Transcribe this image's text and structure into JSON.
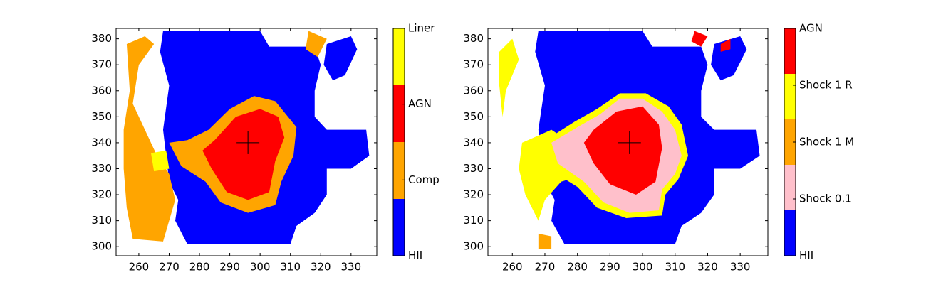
{
  "chart_data": [
    {
      "type": "classmap",
      "xlim": [
        252.5,
        338.5
      ],
      "ylim": [
        296.5,
        384
      ],
      "xticks": [
        260,
        270,
        280,
        290,
        300,
        310,
        320,
        330
      ],
      "yticks": [
        300,
        310,
        320,
        330,
        340,
        350,
        360,
        370,
        380
      ],
      "marker": [
        296,
        340
      ],
      "colorbar": {
        "colors": [
          "#0000ff",
          "#ffa500",
          "#ff0000",
          "#ffff00"
        ],
        "lim": [
          0,
          3
        ],
        "ticks": [
          {
            "value": 0,
            "label": "HII"
          },
          {
            "value": 1,
            "label": "Comp"
          },
          {
            "value": 2,
            "label": "AGN"
          },
          {
            "value": 3,
            "label": "Liner"
          }
        ]
      },
      "regions": [
        {
          "class": 0,
          "points": [
            [
              268,
              383
            ],
            [
              300,
              383
            ],
            [
              303,
              377
            ],
            [
              318,
              377
            ],
            [
              320,
              370
            ],
            [
              318,
              360
            ],
            [
              318,
              350
            ],
            [
              322,
              345
            ],
            [
              335,
              345
            ],
            [
              336,
              335
            ],
            [
              330,
              330
            ],
            [
              322,
              330
            ],
            [
              322,
              320
            ],
            [
              318,
              313
            ],
            [
              312,
              308
            ],
            [
              310,
              301
            ],
            [
              276,
              301
            ],
            [
              272,
              310
            ],
            [
              273,
              318
            ],
            [
              270,
              325
            ],
            [
              268,
              345
            ],
            [
              270,
              362
            ],
            [
              267,
              375
            ]
          ]
        },
        {
          "class": 0,
          "points": [
            [
              322,
              378
            ],
            [
              330,
              381
            ],
            [
              332,
              376
            ],
            [
              328,
              366
            ],
            [
              324,
              364
            ],
            [
              321,
              370
            ]
          ]
        },
        {
          "class": 1,
          "points": [
            [
              256,
              378
            ],
            [
              262,
              381
            ],
            [
              265,
              378
            ],
            [
              260,
              370
            ],
            [
              258,
              355
            ],
            [
              262,
              345
            ],
            [
              266,
              335
            ],
            [
              270,
              328
            ],
            [
              272,
              318
            ],
            [
              270,
              310
            ],
            [
              268,
              302
            ],
            [
              258,
              303
            ],
            [
              256,
              315
            ],
            [
              255,
              330
            ],
            [
              255,
              345
            ],
            [
              257,
              360
            ]
          ]
        },
        {
          "class": 1,
          "points": [
            [
              316,
              383
            ],
            [
              322,
              380
            ],
            [
              319,
              373
            ],
            [
              315,
              376
            ]
          ]
        },
        {
          "class": 1,
          "points": [
            [
              270,
              340
            ],
            [
              276,
              341
            ],
            [
              283,
              345
            ],
            [
              290,
              353
            ],
            [
              298,
              358
            ],
            [
              305,
              356
            ],
            [
              312,
              346
            ],
            [
              311,
              335
            ],
            [
              307,
              325
            ],
            [
              305,
              316
            ],
            [
              296,
              313
            ],
            [
              287,
              317
            ],
            [
              282,
              325
            ],
            [
              274,
              331
            ]
          ]
        },
        {
          "class": 3,
          "points": [
            [
              264,
              336
            ],
            [
              269,
              337
            ],
            [
              270,
              330
            ],
            [
              265,
              329
            ]
          ]
        },
        {
          "class": 2,
          "points": [
            [
              285,
              341
            ],
            [
              292,
              350
            ],
            [
              300,
              353
            ],
            [
              306,
              350
            ],
            [
              308,
              342
            ],
            [
              305,
              333
            ],
            [
              303,
              321
            ],
            [
              296,
              318
            ],
            [
              289,
              321
            ],
            [
              284,
              330
            ],
            [
              281,
              337
            ]
          ]
        }
      ]
    },
    {
      "type": "classmap",
      "xlim": [
        252.5,
        338.5
      ],
      "ylim": [
        296.5,
        384
      ],
      "xticks": [
        260,
        270,
        280,
        290,
        300,
        310,
        320,
        330
      ],
      "yticks": [
        300,
        310,
        320,
        330,
        340,
        350,
        360,
        370,
        380
      ],
      "marker": [
        296,
        340
      ],
      "colorbar": {
        "colors": [
          "#0000ff",
          "#ffc0cb",
          "#ffa500",
          "#ffff00",
          "#ff0000"
        ],
        "lim": [
          0,
          4
        ],
        "ticks": [
          {
            "value": 0,
            "label": "HII"
          },
          {
            "value": 1,
            "label": "Shock 0.1"
          },
          {
            "value": 2,
            "label": "Shock 1 M"
          },
          {
            "value": 3,
            "label": "Shock 1 R"
          },
          {
            "value": 4,
            "label": "AGN"
          }
        ]
      },
      "regions": [
        {
          "class": 0,
          "points": [
            [
              268,
              383
            ],
            [
              300,
              383
            ],
            [
              303,
              377
            ],
            [
              318,
              377
            ],
            [
              320,
              370
            ],
            [
              318,
              360
            ],
            [
              318,
              350
            ],
            [
              322,
              345
            ],
            [
              335,
              345
            ],
            [
              336,
              335
            ],
            [
              330,
              330
            ],
            [
              322,
              330
            ],
            [
              322,
              320
            ],
            [
              318,
              313
            ],
            [
              312,
              308
            ],
            [
              310,
              301
            ],
            [
              276,
              301
            ],
            [
              272,
              310
            ],
            [
              273,
              318
            ],
            [
              270,
              325
            ],
            [
              268,
              345
            ],
            [
              270,
              362
            ],
            [
              267,
              375
            ]
          ]
        },
        {
          "class": 0,
          "points": [
            [
              322,
              378
            ],
            [
              330,
              381
            ],
            [
              332,
              376
            ],
            [
              328,
              366
            ],
            [
              324,
              364
            ],
            [
              321,
              370
            ]
          ]
        },
        {
          "class": 3,
          "points": [
            [
              256,
              375
            ],
            [
              260,
              380
            ],
            [
              262,
              372
            ],
            [
              258,
              360
            ],
            [
              257,
              350
            ],
            [
              256,
              362
            ]
          ]
        },
        {
          "class": 3,
          "points": [
            [
              263,
              340
            ],
            [
              272,
              345
            ],
            [
              278,
              340
            ],
            [
              285,
              335
            ],
            [
              283,
              328
            ],
            [
              275,
              325
            ],
            [
              270,
              318
            ],
            [
              268,
              310
            ],
            [
              264,
              320
            ],
            [
              262,
              330
            ]
          ]
        },
        {
          "class": 3,
          "points": [
            [
              269,
              340
            ],
            [
              279,
              348
            ],
            [
              286,
              353
            ],
            [
              293,
              359
            ],
            [
              301,
              359
            ],
            [
              308,
              354
            ],
            [
              312,
              347
            ],
            [
              314,
              335
            ],
            [
              311,
              326
            ],
            [
              307,
              320
            ],
            [
              306,
              312
            ],
            [
              295,
              311
            ],
            [
              286,
              315
            ],
            [
              280,
              323
            ],
            [
              271,
              330
            ]
          ]
        },
        {
          "class": 1,
          "points": [
            [
              272,
              340
            ],
            [
              280,
              346
            ],
            [
              287,
              351
            ],
            [
              293,
              357
            ],
            [
              300,
              357
            ],
            [
              306,
              352
            ],
            [
              310,
              345
            ],
            [
              312,
              335
            ],
            [
              310,
              328
            ],
            [
              306,
              322
            ],
            [
              305,
              314
            ],
            [
              296,
              313
            ],
            [
              288,
              317
            ],
            [
              282,
              325
            ],
            [
              274,
              332
            ]
          ]
        },
        {
          "class": 2,
          "points": [
            [
              268,
              305
            ],
            [
              272,
              304
            ],
            [
              272,
              299
            ],
            [
              268,
              299
            ]
          ]
        },
        {
          "class": 4,
          "points": [
            [
              285,
              345
            ],
            [
              292,
              352
            ],
            [
              300,
              354
            ],
            [
              305,
              347
            ],
            [
              306,
              338
            ],
            [
              304,
              325
            ],
            [
              298,
              320
            ],
            [
              290,
              324
            ],
            [
              285,
              332
            ],
            [
              282,
              340
            ]
          ]
        },
        {
          "class": 4,
          "points": [
            [
              316,
              383
            ],
            [
              320,
              381
            ],
            [
              318,
              377
            ],
            [
              315,
              379
            ]
          ]
        },
        {
          "class": 4,
          "points": [
            [
              324,
              378
            ],
            [
              327,
              380
            ],
            [
              327,
              376
            ],
            [
              324,
              375
            ]
          ]
        }
      ]
    }
  ]
}
